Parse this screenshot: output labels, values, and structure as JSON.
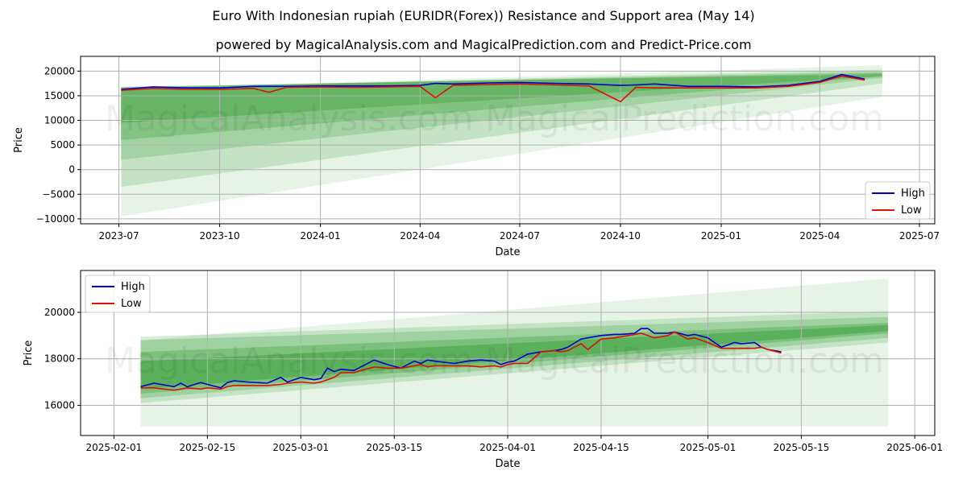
{
  "title": "Euro With Indonesian rupiah (EURIDR(Forex)) Resistance and Support area (May 14)",
  "subtitle": "powered by MagicalAnalysis.com and MagicalPrediction.com and Predict-Price.com",
  "watermarks": [
    "MagicalAnalysis.com",
    "MagicalPrediction.com"
  ],
  "colors": {
    "high": "#0000cc",
    "low": "#dd1100",
    "band": "#2e9a2e"
  },
  "chart_data": [
    {
      "type": "line",
      "xlabel": "Date",
      "ylabel": "Price",
      "x_ticks": [
        "2023-07",
        "2023-10",
        "2024-01",
        "2024-04",
        "2024-07",
        "2024-10",
        "2025-01",
        "2025-04",
        "2025-07"
      ],
      "y_ticks": [
        "−10000",
        "−5000",
        "0",
        "5000",
        "10000",
        "15000",
        "20000"
      ],
      "ylim": [
        -11000,
        23000
      ],
      "grid": true,
      "legend": {
        "position": "lower-right",
        "entries": [
          "High",
          "Low"
        ]
      },
      "series": [
        {
          "name": "High",
          "x": [
            "2023-07-03",
            "2023-08-01",
            "2023-09-01",
            "2023-10-02",
            "2023-11-01",
            "2023-11-15",
            "2023-12-01",
            "2024-01-02",
            "2024-02-01",
            "2024-03-01",
            "2024-04-01",
            "2024-04-15",
            "2024-05-01",
            "2024-06-03",
            "2024-07-01",
            "2024-08-01",
            "2024-09-02",
            "2024-10-01",
            "2024-10-15",
            "2024-11-01",
            "2024-12-02",
            "2025-01-02",
            "2025-02-03",
            "2025-03-03",
            "2025-04-01",
            "2025-04-21",
            "2025-05-12"
          ],
          "values": [
            16300,
            16800,
            16600,
            16600,
            16900,
            16900,
            16900,
            17000,
            17000,
            17000,
            17100,
            17500,
            17400,
            17600,
            17700,
            17500,
            17400,
            17100,
            17200,
            17400,
            16900,
            16900,
            16800,
            17100,
            17900,
            19300,
            18400
          ]
        },
        {
          "name": "Low",
          "x": [
            "2023-07-03",
            "2023-08-01",
            "2023-09-01",
            "2023-10-02",
            "2023-11-01",
            "2023-11-15",
            "2023-12-01",
            "2024-01-02",
            "2024-02-01",
            "2024-03-01",
            "2024-04-01",
            "2024-04-15",
            "2024-05-01",
            "2024-06-03",
            "2024-07-01",
            "2024-08-01",
            "2024-09-02",
            "2024-10-01",
            "2024-10-15",
            "2024-11-01",
            "2024-12-02",
            "2025-01-02",
            "2025-02-03",
            "2025-03-03",
            "2025-04-01",
            "2025-04-21",
            "2025-05-12"
          ],
          "values": [
            16100,
            16500,
            16300,
            16300,
            16500,
            15700,
            16700,
            16800,
            16700,
            16800,
            16900,
            14600,
            17100,
            17300,
            17400,
            17200,
            17000,
            13800,
            16700,
            16600,
            16600,
            16600,
            16600,
            16900,
            17700,
            19000,
            18200
          ]
        }
      ],
      "bands": [
        {
          "start_date": "2023-07-03",
          "end_date": "2025-05-28",
          "start": [
            -9500,
            16300
          ],
          "end": [
            14800,
            21200
          ],
          "opacity": 0.12
        },
        {
          "start_date": "2023-07-03",
          "end_date": "2025-05-28",
          "start": [
            -3500,
            16500
          ],
          "end": [
            17500,
            20300
          ],
          "opacity": 0.18
        },
        {
          "start_date": "2023-07-03",
          "end_date": "2025-05-28",
          "start": [
            2000,
            16600
          ],
          "end": [
            18600,
            19900
          ],
          "opacity": 0.22
        },
        {
          "start_date": "2023-07-03",
          "end_date": "2025-05-28",
          "start": [
            6000,
            16700
          ],
          "end": [
            18900,
            19600
          ],
          "opacity": 0.28
        },
        {
          "start_date": "2023-07-03",
          "end_date": "2025-05-28",
          "start": [
            9500,
            16800
          ],
          "end": [
            19000,
            19400
          ],
          "opacity": 0.34
        }
      ]
    },
    {
      "type": "line",
      "xlabel": "Date",
      "ylabel": "Price",
      "x_ticks": [
        "2025-02-01",
        "2025-02-15",
        "2025-03-01",
        "2025-03-15",
        "2025-04-01",
        "2025-04-15",
        "2025-05-01",
        "2025-05-15",
        "2025-06-01"
      ],
      "y_ticks": [
        "16000",
        "18000",
        "20000"
      ],
      "ylim": [
        14700,
        21800
      ],
      "grid": true,
      "legend": {
        "position": "top-left",
        "entries": [
          "High",
          "Low"
        ]
      },
      "series": [
        {
          "name": "High",
          "x": [
            "2025-02-05",
            "2025-02-07",
            "2025-02-10",
            "2025-02-11",
            "2025-02-12",
            "2025-02-14",
            "2025-02-15",
            "2025-02-17",
            "2025-02-18",
            "2025-02-19",
            "2025-02-21",
            "2025-02-24",
            "2025-02-26",
            "2025-02-27",
            "2025-03-01",
            "2025-03-03",
            "2025-03-04",
            "2025-03-05",
            "2025-03-06",
            "2025-03-07",
            "2025-03-09",
            "2025-03-10",
            "2025-03-12",
            "2025-03-14",
            "2025-03-16",
            "2025-03-18",
            "2025-03-19",
            "2025-03-20",
            "2025-03-21",
            "2025-03-24",
            "2025-03-26",
            "2025-03-28",
            "2025-03-30",
            "2025-03-31",
            "2025-04-01",
            "2025-04-02",
            "2025-04-03",
            "2025-04-04",
            "2025-04-06",
            "2025-04-08",
            "2025-04-09",
            "2025-04-10",
            "2025-04-12",
            "2025-04-13",
            "2025-04-15",
            "2025-04-17",
            "2025-04-18",
            "2025-04-20",
            "2025-04-21",
            "2025-04-22",
            "2025-04-23",
            "2025-04-25",
            "2025-04-26",
            "2025-04-28",
            "2025-04-29",
            "2025-05-01",
            "2025-05-03",
            "2025-05-05",
            "2025-05-06",
            "2025-05-08",
            "2025-05-09",
            "2025-05-10",
            "2025-05-12"
          ],
          "values": [
            16800,
            16950,
            16800,
            16950,
            16800,
            16980,
            16900,
            16750,
            16980,
            17050,
            17000,
            16950,
            17200,
            17000,
            17200,
            17100,
            17150,
            17600,
            17450,
            17550,
            17500,
            17650,
            17950,
            17750,
            17600,
            17900,
            17800,
            17950,
            17900,
            17800,
            17900,
            17950,
            17900,
            17750,
            17850,
            17900,
            18050,
            18200,
            18300,
            18350,
            18400,
            18500,
            18850,
            18900,
            19000,
            19050,
            19050,
            19100,
            19300,
            19300,
            19100,
            19100,
            19150,
            19000,
            19050,
            18900,
            18500,
            18700,
            18650,
            18700,
            18500,
            18400,
            18300
          ]
        },
        {
          "name": "Low",
          "x": [
            "2025-02-05",
            "2025-02-07",
            "2025-02-10",
            "2025-02-11",
            "2025-02-12",
            "2025-02-14",
            "2025-02-15",
            "2025-02-17",
            "2025-02-18",
            "2025-02-19",
            "2025-02-21",
            "2025-02-24",
            "2025-02-26",
            "2025-02-27",
            "2025-03-01",
            "2025-03-03",
            "2025-03-04",
            "2025-03-05",
            "2025-03-06",
            "2025-03-07",
            "2025-03-09",
            "2025-03-10",
            "2025-03-12",
            "2025-03-14",
            "2025-03-16",
            "2025-03-18",
            "2025-03-19",
            "2025-03-20",
            "2025-03-21",
            "2025-03-24",
            "2025-03-26",
            "2025-03-28",
            "2025-03-30",
            "2025-03-31",
            "2025-04-01",
            "2025-04-02",
            "2025-04-03",
            "2025-04-04",
            "2025-04-06",
            "2025-04-08",
            "2025-04-09",
            "2025-04-10",
            "2025-04-12",
            "2025-04-13",
            "2025-04-15",
            "2025-04-17",
            "2025-04-18",
            "2025-04-20",
            "2025-04-21",
            "2025-04-22",
            "2025-04-23",
            "2025-04-25",
            "2025-04-26",
            "2025-04-28",
            "2025-04-29",
            "2025-05-01",
            "2025-05-03",
            "2025-05-05",
            "2025-05-06",
            "2025-05-08",
            "2025-05-09",
            "2025-05-10",
            "2025-05-12"
          ],
          "values": [
            16750,
            16750,
            16650,
            16700,
            16750,
            16700,
            16750,
            16700,
            16800,
            16850,
            16850,
            16850,
            16900,
            16950,
            17000,
            16950,
            17000,
            17100,
            17200,
            17400,
            17400,
            17500,
            17650,
            17600,
            17600,
            17700,
            17750,
            17650,
            17700,
            17700,
            17700,
            17650,
            17700,
            17650,
            17750,
            17800,
            17800,
            17800,
            18300,
            18350,
            18300,
            18350,
            18650,
            18400,
            18850,
            18900,
            18950,
            19050,
            19100,
            19000,
            18900,
            19000,
            19150,
            18850,
            18900,
            18700,
            18450,
            18450,
            18450,
            18450,
            18500,
            18400,
            18250
          ]
        }
      ],
      "bands": [
        {
          "start_date": "2025-02-05",
          "end_date": "2025-05-28",
          "start": [
            15100,
            18800
          ],
          "end": [
            15100,
            21450
          ],
          "opacity": 0.12
        },
        {
          "start_date": "2025-02-05",
          "end_date": "2025-05-28",
          "start": [
            16100,
            18950
          ],
          "end": [
            18700,
            20050
          ],
          "opacity": 0.18
        },
        {
          "start_date": "2025-02-05",
          "end_date": "2025-05-28",
          "start": [
            16300,
            18800
          ],
          "end": [
            18900,
            19800
          ],
          "opacity": 0.24
        },
        {
          "start_date": "2025-02-05",
          "end_date": "2025-05-28",
          "start": [
            16500,
            18300
          ],
          "end": [
            19100,
            19550
          ],
          "opacity": 0.32
        },
        {
          "start_date": "2025-02-05",
          "end_date": "2025-05-28",
          "start": [
            16700,
            17900
          ],
          "end": [
            19200,
            19450
          ],
          "opacity": 0.4
        }
      ]
    }
  ]
}
